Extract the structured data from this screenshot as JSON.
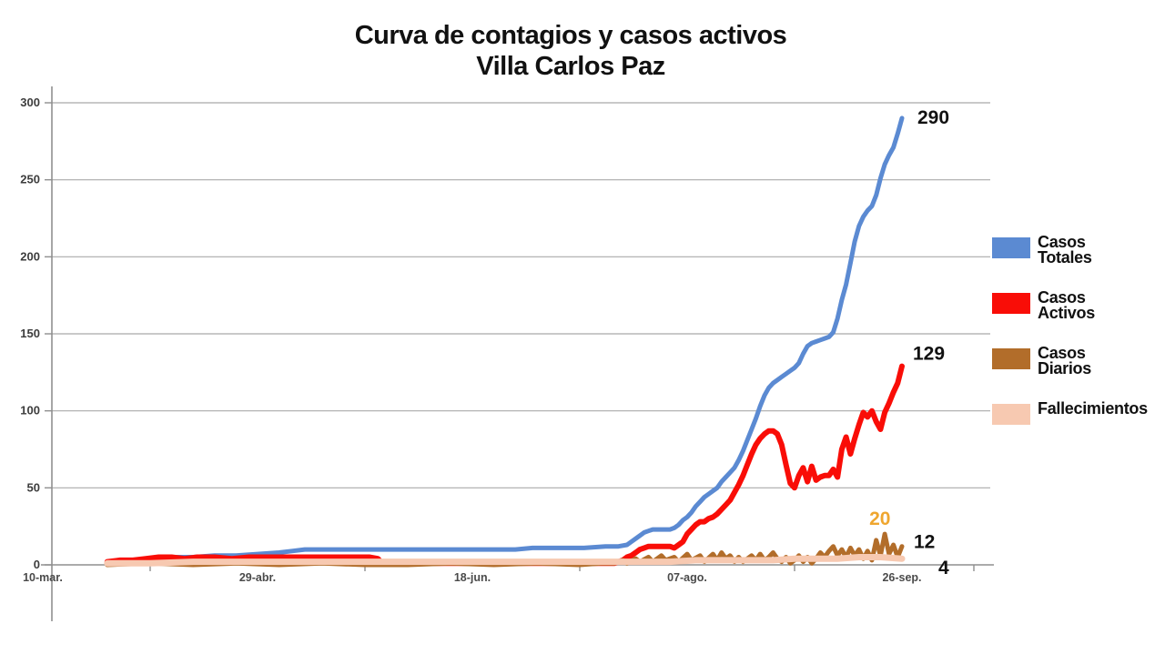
{
  "title": {
    "line1": "Curva de contagios y casos activos",
    "line2": "Villa Carlos Paz"
  },
  "colors": {
    "casos_totales": "#5b8ad2",
    "casos_activos": "#f90d07",
    "casos_diarios": "#b26d2a",
    "fallecimientos": "#f7c9b1",
    "peak_label_orange": "#efa62f",
    "axis": "#8f8f8f",
    "gridline": "#a9a9a9",
    "y_tick_text": "#3d3d3d",
    "x_tick_text": "#4a4a4a",
    "end_label_text": "#111111"
  },
  "legend": {
    "items": [
      {
        "id": "casos-totales",
        "label_lines": [
          "Casos",
          "Totales"
        ],
        "color": "#5b8ad2"
      },
      {
        "id": "casos-activos",
        "label_lines": [
          "Casos",
          "Activos"
        ],
        "color": "#f90d07"
      },
      {
        "id": "casos-diarios",
        "label_lines": [
          "Casos",
          "Diarios"
        ],
        "color": "#b26d2a"
      },
      {
        "id": "fallecimientos",
        "label_lines": [
          "Fallecimientos"
        ],
        "color": "#f7c9b1"
      }
    ]
  },
  "chart_data": {
    "type": "line",
    "title": "Curva de contagios y casos activos — Villa Carlos Paz",
    "x_axis": {
      "unit": "date",
      "tick_labels": [
        "10-mar.",
        "29-abr.",
        "18-jun.",
        "07-ago.",
        "26-sep."
      ],
      "tick_positions_days": [
        0,
        50,
        100,
        150,
        200
      ],
      "range_days": [
        0,
        200
      ]
    },
    "y_axis": {
      "ticks": [
        0,
        50,
        100,
        150,
        200,
        250,
        300
      ],
      "range": [
        0,
        300
      ]
    },
    "grid": true,
    "legend_position": "right",
    "end_value_labels": [
      {
        "series": "Casos Totales",
        "text": "290",
        "color": "#111111"
      },
      {
        "series": "Casos Activos",
        "text": "129",
        "color": "#111111"
      },
      {
        "series": "Casos Diarios",
        "text": "12",
        "color": "#111111"
      },
      {
        "series": "Fallecimientos",
        "text": "4",
        "color": "#111111"
      }
    ],
    "peak_annotation": {
      "series": "Casos Diarios",
      "text": "20",
      "day": 196,
      "value": 20,
      "color": "#efa62f"
    },
    "series": [
      {
        "name": "Casos Totales",
        "color": "#5b8ad2",
        "line_width": 5,
        "end_value": 290,
        "points": [
          [
            15,
            2
          ],
          [
            18,
            3
          ],
          [
            22,
            3
          ],
          [
            25,
            4
          ],
          [
            30,
            5
          ],
          [
            35,
            5
          ],
          [
            40,
            6
          ],
          [
            45,
            6
          ],
          [
            50,
            7
          ],
          [
            55,
            8
          ],
          [
            58,
            9
          ],
          [
            61,
            10
          ],
          [
            70,
            10
          ],
          [
            85,
            10
          ],
          [
            100,
            10
          ],
          [
            110,
            10
          ],
          [
            114,
            11
          ],
          [
            120,
            11
          ],
          [
            126,
            11
          ],
          [
            131,
            12
          ],
          [
            134,
            12
          ],
          [
            136,
            13
          ],
          [
            137,
            15
          ],
          [
            138,
            17
          ],
          [
            139,
            19
          ],
          [
            140,
            21
          ],
          [
            141,
            22
          ],
          [
            142,
            23
          ],
          [
            144,
            23
          ],
          [
            146,
            23
          ],
          [
            147,
            24
          ],
          [
            148,
            26
          ],
          [
            149,
            29
          ],
          [
            150,
            31
          ],
          [
            151,
            34
          ],
          [
            152,
            38
          ],
          [
            153,
            41
          ],
          [
            154,
            44
          ],
          [
            155,
            46
          ],
          [
            156,
            48
          ],
          [
            157,
            50
          ],
          [
            158,
            54
          ],
          [
            159,
            57
          ],
          [
            160,
            60
          ],
          [
            161,
            63
          ],
          [
            162,
            68
          ],
          [
            163,
            74
          ],
          [
            164,
            81
          ],
          [
            165,
            88
          ],
          [
            166,
            95
          ],
          [
            167,
            103
          ],
          [
            168,
            110
          ],
          [
            169,
            115
          ],
          [
            170,
            118
          ],
          [
            171,
            120
          ],
          [
            172,
            122
          ],
          [
            173,
            124
          ],
          [
            174,
            126
          ],
          [
            175,
            128
          ],
          [
            176,
            131
          ],
          [
            177,
            137
          ],
          [
            178,
            142
          ],
          [
            179,
            144
          ],
          [
            180,
            145
          ],
          [
            181,
            146
          ],
          [
            182,
            147
          ],
          [
            183,
            148
          ],
          [
            184,
            151
          ],
          [
            185,
            160
          ],
          [
            186,
            172
          ],
          [
            187,
            182
          ],
          [
            188,
            196
          ],
          [
            189,
            210
          ],
          [
            190,
            220
          ],
          [
            191,
            226
          ],
          [
            192,
            230
          ],
          [
            193,
            233
          ],
          [
            194,
            240
          ],
          [
            195,
            251
          ],
          [
            196,
            260
          ],
          [
            197,
            266
          ],
          [
            198,
            271
          ],
          [
            199,
            280
          ],
          [
            200,
            290
          ]
        ]
      },
      {
        "name": "Casos Activos",
        "color": "#f90d07",
        "line_width": 6,
        "end_value": 129,
        "points": [
          [
            15,
            2
          ],
          [
            18,
            3
          ],
          [
            21,
            3
          ],
          [
            24,
            4
          ],
          [
            27,
            5
          ],
          [
            30,
            5
          ],
          [
            33,
            4
          ],
          [
            36,
            5
          ],
          [
            40,
            5
          ],
          [
            44,
            4
          ],
          [
            48,
            5
          ],
          [
            52,
            5
          ],
          [
            56,
            5
          ],
          [
            60,
            5
          ],
          [
            64,
            5
          ],
          [
            68,
            5
          ],
          [
            72,
            5
          ],
          [
            76,
            5
          ],
          [
            78,
            4
          ],
          [
            79,
            1
          ],
          [
            84,
            1
          ],
          [
            90,
            1
          ],
          [
            96,
            1
          ],
          [
            102,
            1
          ],
          [
            108,
            1
          ],
          [
            114,
            1
          ],
          [
            120,
            1
          ],
          [
            126,
            1
          ],
          [
            130,
            1
          ],
          [
            133,
            1
          ],
          [
            134,
            2
          ],
          [
            135,
            3
          ],
          [
            136,
            5
          ],
          [
            137,
            6
          ],
          [
            138,
            8
          ],
          [
            139,
            10
          ],
          [
            140,
            11
          ],
          [
            141,
            12
          ],
          [
            142,
            12
          ],
          [
            144,
            12
          ],
          [
            146,
            12
          ],
          [
            147,
            11
          ],
          [
            148,
            13
          ],
          [
            149,
            15
          ],
          [
            150,
            20
          ],
          [
            151,
            23
          ],
          [
            152,
            26
          ],
          [
            153,
            28
          ],
          [
            154,
            28
          ],
          [
            155,
            30
          ],
          [
            156,
            31
          ],
          [
            157,
            33
          ],
          [
            158,
            36
          ],
          [
            159,
            39
          ],
          [
            160,
            42
          ],
          [
            161,
            47
          ],
          [
            162,
            52
          ],
          [
            163,
            58
          ],
          [
            164,
            65
          ],
          [
            165,
            72
          ],
          [
            166,
            78
          ],
          [
            167,
            82
          ],
          [
            168,
            85
          ],
          [
            169,
            87
          ],
          [
            170,
            87
          ],
          [
            171,
            85
          ],
          [
            172,
            78
          ],
          [
            173,
            65
          ],
          [
            174,
            53
          ],
          [
            175,
            50
          ],
          [
            176,
            58
          ],
          [
            177,
            63
          ],
          [
            178,
            54
          ],
          [
            179,
            64
          ],
          [
            180,
            55
          ],
          [
            181,
            57
          ],
          [
            182,
            58
          ],
          [
            183,
            58
          ],
          [
            184,
            62
          ],
          [
            185,
            57
          ],
          [
            186,
            75
          ],
          [
            187,
            83
          ],
          [
            188,
            72
          ],
          [
            189,
            82
          ],
          [
            190,
            91
          ],
          [
            191,
            99
          ],
          [
            192,
            96
          ],
          [
            193,
            100
          ],
          [
            194,
            93
          ],
          [
            195,
            88
          ],
          [
            196,
            99
          ],
          [
            197,
            105
          ],
          [
            198,
            112
          ],
          [
            199,
            118
          ],
          [
            200,
            129
          ]
        ]
      },
      {
        "name": "Casos Diarios",
        "color": "#b26d2a",
        "line_width": 5,
        "end_value": 12,
        "points": [
          [
            15,
            0
          ],
          [
            25,
            1
          ],
          [
            35,
            0
          ],
          [
            45,
            1
          ],
          [
            55,
            0
          ],
          [
            65,
            1
          ],
          [
            75,
            0
          ],
          [
            85,
            0
          ],
          [
            95,
            1
          ],
          [
            105,
            0
          ],
          [
            115,
            1
          ],
          [
            125,
            0
          ],
          [
            130,
            1
          ],
          [
            133,
            1
          ],
          [
            135,
            3
          ],
          [
            136,
            1
          ],
          [
            138,
            4
          ],
          [
            139,
            2
          ],
          [
            141,
            5
          ],
          [
            142,
            2
          ],
          [
            144,
            6
          ],
          [
            145,
            3
          ],
          [
            147,
            5
          ],
          [
            148,
            2
          ],
          [
            150,
            7
          ],
          [
            151,
            3
          ],
          [
            153,
            6
          ],
          [
            154,
            2
          ],
          [
            156,
            7
          ],
          [
            157,
            3
          ],
          [
            158,
            8
          ],
          [
            159,
            4
          ],
          [
            160,
            6
          ],
          [
            161,
            2
          ],
          [
            162,
            5
          ],
          [
            163,
            2
          ],
          [
            165,
            6
          ],
          [
            166,
            3
          ],
          [
            167,
            7
          ],
          [
            168,
            3
          ],
          [
            169,
            5
          ],
          [
            170,
            8
          ],
          [
            171,
            4
          ],
          [
            172,
            2
          ],
          [
            173,
            5
          ],
          [
            174,
            1
          ],
          [
            175,
            3
          ],
          [
            176,
            6
          ],
          [
            177,
            2
          ],
          [
            178,
            5
          ],
          [
            179,
            1
          ],
          [
            180,
            4
          ],
          [
            181,
            8
          ],
          [
            182,
            5
          ],
          [
            183,
            9
          ],
          [
            184,
            12
          ],
          [
            185,
            6
          ],
          [
            186,
            10
          ],
          [
            187,
            5
          ],
          [
            188,
            11
          ],
          [
            189,
            6
          ],
          [
            190,
            10
          ],
          [
            191,
            4
          ],
          [
            192,
            9
          ],
          [
            193,
            3
          ],
          [
            194,
            16
          ],
          [
            195,
            6
          ],
          [
            196,
            20
          ],
          [
            197,
            7
          ],
          [
            198,
            13
          ],
          [
            199,
            5
          ],
          [
            200,
            12
          ]
        ]
      },
      {
        "name": "Fallecimientos",
        "color": "#f7c9b1",
        "line_width": 7,
        "end_value": 4,
        "points": [
          [
            15,
            1
          ],
          [
            25,
            1
          ],
          [
            35,
            2
          ],
          [
            50,
            2
          ],
          [
            65,
            2
          ],
          [
            80,
            2
          ],
          [
            95,
            2
          ],
          [
            110,
            2
          ],
          [
            125,
            2
          ],
          [
            134,
            2
          ],
          [
            140,
            2
          ],
          [
            146,
            2
          ],
          [
            152,
            3
          ],
          [
            158,
            3
          ],
          [
            164,
            3
          ],
          [
            170,
            3
          ],
          [
            175,
            4
          ],
          [
            180,
            4
          ],
          [
            185,
            4
          ],
          [
            190,
            5
          ],
          [
            195,
            5
          ],
          [
            200,
            4
          ]
        ]
      }
    ]
  }
}
